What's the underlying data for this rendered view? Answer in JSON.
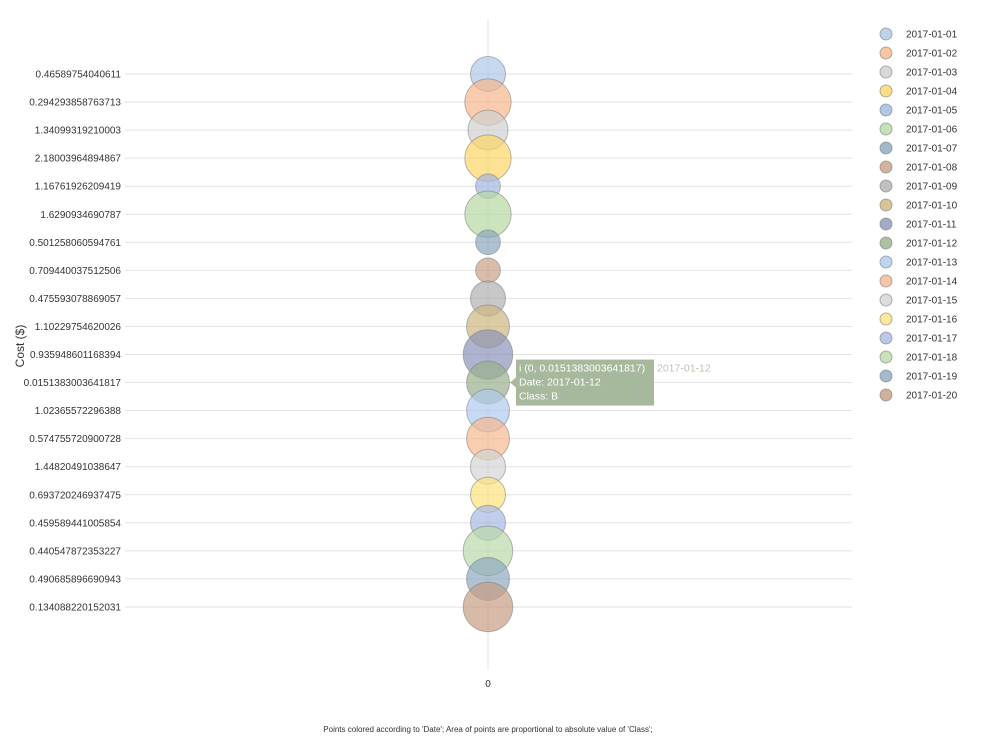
{
  "chart_data": {
    "type": "scatter",
    "title": "",
    "xlabel": "",
    "ylabel": "Cost ($)",
    "x_ticks": [
      "0"
    ],
    "footnote": "Points colored according to 'Date'; Area of points are proportional to absolute value of 'Class';",
    "legend_position": "right",
    "grid": true,
    "points": [
      {
        "x": 0,
        "y": "0.46589754040611",
        "date": "2017-01-01",
        "color": "#aec7e8",
        "size": 1.0
      },
      {
        "x": 0,
        "y": "0.294293858763713",
        "date": "2017-01-02",
        "color": "#f7b68c",
        "size": 1.75
      },
      {
        "x": 0,
        "y": "1.34099319210003",
        "date": "2017-01-03",
        "color": "#d0d0d0",
        "size": 1.3
      },
      {
        "x": 0,
        "y": "2.18003964894867",
        "date": "2017-01-04",
        "color": "#fcd667",
        "size": 1.75
      },
      {
        "x": 0,
        "y": "1.16761926209419",
        "date": "2017-01-05",
        "color": "#a3b6e0",
        "size": 0.5
      },
      {
        "x": 0,
        "y": "1.6290934690787",
        "date": "2017-01-06",
        "color": "#b7d9a3",
        "size": 1.75
      },
      {
        "x": 0,
        "y": "0.501258060594761",
        "date": "2017-01-07",
        "color": "#8aa7be",
        "size": 0.5
      },
      {
        "x": 0,
        "y": "0.709440037512506",
        "date": "2017-01-08",
        "color": "#c9a084",
        "size": 0.5
      },
      {
        "x": 0,
        "y": "0.475593078869057",
        "date": "2017-01-09",
        "color": "#b0b0b0",
        "size": 1.0
      },
      {
        "x": 0,
        "y": "1.10229754620026",
        "date": "2017-01-10",
        "color": "#cdb77f",
        "size": 1.5
      },
      {
        "x": 0,
        "y": "0.935948601168394",
        "date": "2017-01-11",
        "color": "#8c94b9",
        "size": 2.0
      },
      {
        "x": 0,
        "y": "0.0151383003641817",
        "date": "2017-01-12",
        "color": "#99b08c",
        "size": 1.5
      },
      {
        "x": 0,
        "y": "1.02365572296388",
        "date": "2017-01-13",
        "color": "#aecbee",
        "size": 1.5
      },
      {
        "x": 0,
        "y": "0.574755720900728",
        "date": "2017-01-14",
        "color": "#f6b88e",
        "size": 1.5
      },
      {
        "x": 0,
        "y": "1.44820491038647",
        "date": "2017-01-15",
        "color": "#d4d4d4",
        "size": 1.0
      },
      {
        "x": 0,
        "y": "0.693720246937475",
        "date": "2017-01-16",
        "color": "#fce27e",
        "size": 1.0
      },
      {
        "x": 0,
        "y": "0.459589441005854",
        "date": "2017-01-17",
        "color": "#a7b9e3",
        "size": 1.0
      },
      {
        "x": 0,
        "y": "0.440547872353227",
        "date": "2017-01-18",
        "color": "#bad9a8",
        "size": 2.0
      },
      {
        "x": 0,
        "y": "0.490685896690943",
        "date": "2017-01-19",
        "color": "#8da9c0",
        "size": 1.5
      },
      {
        "x": 0,
        "y": "0.134088220152031",
        "date": "2017-01-20",
        "color": "#c69c81",
        "size": 2.0
      }
    ],
    "tooltip": {
      "index": 11,
      "line1": "i (0, 0.0151383003641817)",
      "series": "2017-01-12",
      "line2": "Date: 2017-01-12",
      "line3": "Class: B",
      "background": "#a7b99c"
    }
  }
}
